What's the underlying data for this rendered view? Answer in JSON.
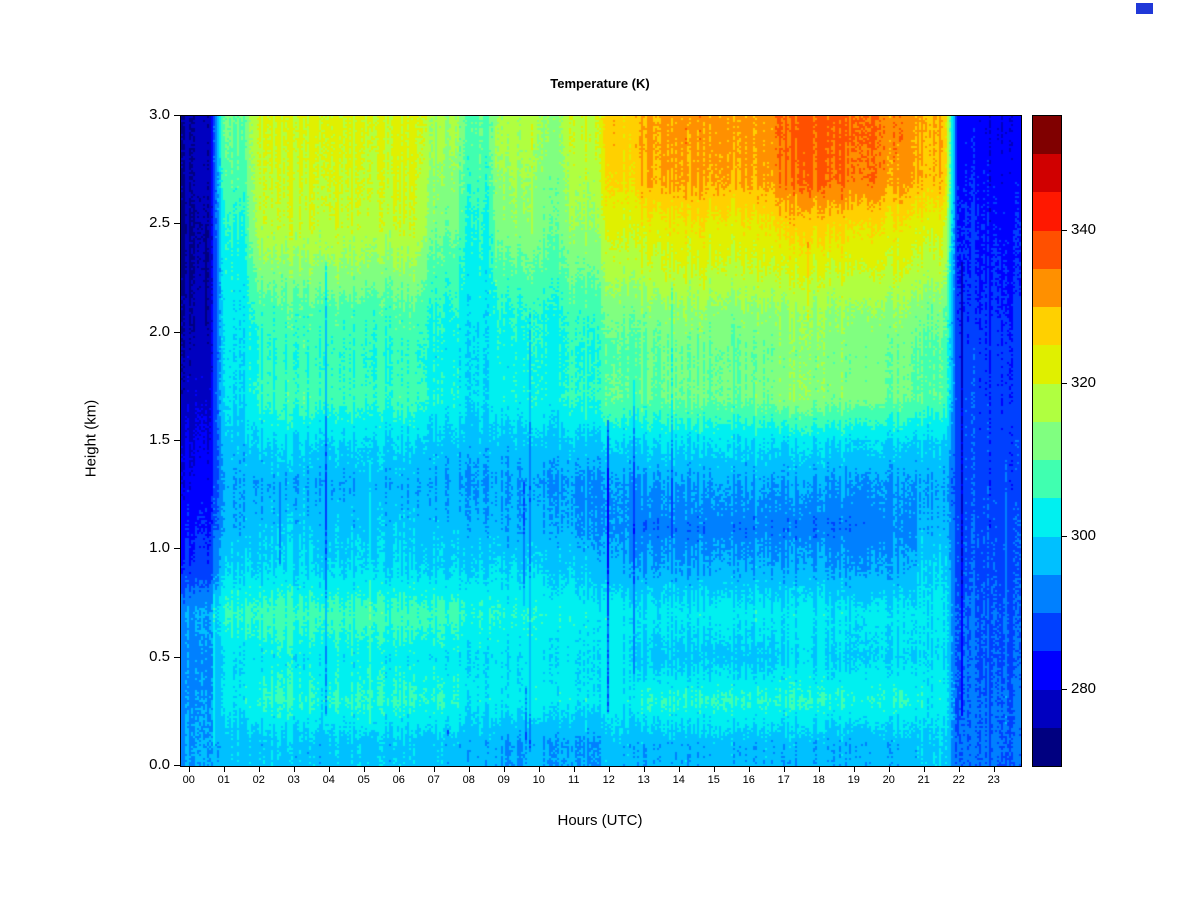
{
  "title": "Temperature (K)",
  "corner_mark": {
    "color": "#2038d8"
  },
  "chart_data": {
    "type": "heatmap",
    "title": "Temperature (K)",
    "xlabel": "Hours (UTC)",
    "ylabel": "Height (km)",
    "x_tick_labels": [
      "00",
      "01",
      "02",
      "03",
      "04",
      "05",
      "06",
      "07",
      "08",
      "09",
      "10",
      "11",
      "12",
      "13",
      "14",
      "15",
      "16",
      "17",
      "18",
      "19",
      "20",
      "21",
      "22",
      "23"
    ],
    "y_tick_labels": [
      "0.0",
      "0.5",
      "1.0",
      "1.5",
      "2.0",
      "2.5",
      "3.0"
    ],
    "x_range_hours": [
      0,
      24
    ],
    "y_range_km": [
      0.0,
      3.0
    ],
    "grid_on": false,
    "legend_position": "right-colorbar",
    "colorbar": {
      "units": "K",
      "min": 270,
      "max": 355,
      "step": 5,
      "tick_values": [
        280,
        300,
        320,
        340
      ],
      "tick_labels": [
        "280",
        "300",
        "320",
        "340"
      ],
      "palette_name": "jet",
      "colors": [
        "#000080",
        "#0000c0",
        "#0000ff",
        "#0040ff",
        "#0080ff",
        "#00c0ff",
        "#00f0f0",
        "#40ffb0",
        "#80ff80",
        "#b0ff40",
        "#e0f000",
        "#ffd000",
        "#ff9000",
        "#ff5000",
        "#ff1800",
        "#d00000",
        "#800000"
      ]
    },
    "grid": {
      "hours_utc": [
        0,
        1,
        2,
        3,
        4,
        5,
        6,
        7,
        8,
        9,
        10,
        11,
        12,
        13,
        14,
        15,
        16,
        17,
        18,
        19,
        20,
        21,
        22,
        23
      ],
      "heights_km_desc": [
        2.9,
        2.7,
        2.5,
        2.3,
        2.1,
        1.9,
        1.7,
        1.5,
        1.3,
        1.1,
        0.9,
        0.7,
        0.5,
        0.3,
        0.1
      ],
      "values_by_height_desc": [
        [
          276,
          310,
          320,
          321,
          321,
          320,
          321,
          316,
          309,
          317,
          314,
          319,
          327,
          331,
          332,
          331,
          332,
          336,
          337,
          336,
          333,
          330,
          283,
          281
        ],
        [
          276,
          308,
          319,
          320,
          320,
          319,
          320,
          314,
          307,
          315,
          312,
          317,
          325,
          330,
          331,
          330,
          331,
          335,
          336,
          335,
          332,
          329,
          284,
          282
        ],
        [
          275,
          305,
          318,
          319,
          319,
          318,
          319,
          312,
          305,
          313,
          311,
          315,
          321,
          323,
          324,
          323,
          324,
          327,
          327,
          326,
          324,
          322,
          285,
          283
        ],
        [
          275,
          303,
          313,
          314,
          314,
          313,
          314,
          308,
          303,
          309,
          308,
          311,
          317,
          319,
          320,
          319,
          320,
          321,
          321,
          321,
          320,
          318,
          285,
          284
        ],
        [
          276,
          302,
          307,
          308,
          308,
          307,
          308,
          305,
          302,
          305,
          304,
          307,
          311,
          313,
          314,
          313,
          314,
          315,
          315,
          315,
          314,
          312,
          286,
          285
        ],
        [
          277,
          301,
          305,
          306,
          306,
          305,
          306,
          303,
          301,
          303,
          303,
          305,
          308,
          310,
          311,
          310,
          311,
          313,
          313,
          312,
          311,
          309,
          287,
          286
        ],
        [
          278,
          301,
          306,
          307,
          307,
          306,
          307,
          304,
          301,
          303,
          303,
          306,
          309,
          310,
          311,
          310,
          311,
          314,
          313,
          313,
          311,
          309,
          288,
          286
        ],
        [
          280,
          298,
          300,
          300,
          300,
          300,
          300,
          299,
          298,
          298,
          298,
          299,
          300,
          301,
          301,
          301,
          301,
          301,
          301,
          301,
          300,
          300,
          288,
          287
        ],
        [
          282,
          296,
          296,
          296,
          296,
          297,
          296,
          296,
          295,
          295,
          294,
          294,
          294,
          295,
          295,
          295,
          295,
          295,
          295,
          295,
          295,
          296,
          288,
          287
        ],
        [
          284,
          297,
          298,
          298,
          298,
          298,
          298,
          298,
          297,
          296,
          296,
          295,
          293,
          292,
          292,
          292,
          292,
          292,
          292,
          292,
          293,
          297,
          289,
          288
        ],
        [
          287,
          300,
          300,
          300,
          300,
          300,
          300,
          300,
          300,
          300,
          299,
          299,
          296,
          296,
          296,
          296,
          296,
          296,
          296,
          296,
          296,
          300,
          289,
          288
        ],
        [
          295,
          306,
          307,
          307,
          307,
          307,
          307,
          307,
          305,
          304,
          303,
          303,
          302,
          302,
          302,
          302,
          302,
          302,
          302,
          302,
          302,
          302,
          290,
          289
        ],
        [
          293,
          301,
          302,
          302,
          302,
          302,
          302,
          302,
          301,
          301,
          301,
          301,
          301,
          298,
          298,
          298,
          298,
          300,
          300,
          300,
          300,
          301,
          290,
          289
        ],
        [
          294,
          302,
          305,
          305,
          305,
          305,
          305,
          305,
          302,
          302,
          302,
          302,
          302,
          305,
          305,
          305,
          305,
          305,
          305,
          305,
          305,
          303,
          291,
          290
        ],
        [
          295,
          298,
          298,
          298,
          298,
          298,
          298,
          298,
          297,
          295,
          295,
          295,
          297,
          297,
          297,
          297,
          297,
          297,
          297,
          297,
          297,
          299,
          291,
          290
        ]
      ]
    }
  }
}
